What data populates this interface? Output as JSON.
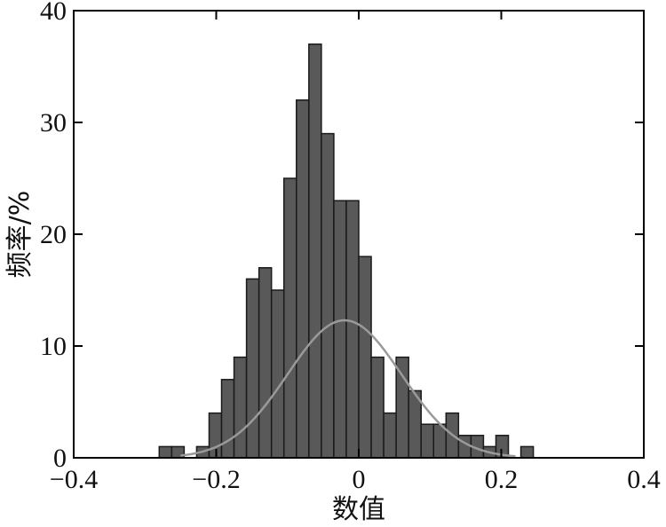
{
  "chart_data": {
    "type": "bar",
    "title": "",
    "xlabel": "数值",
    "ylabel": "频率/%",
    "xlim": [
      -0.4,
      0.4
    ],
    "ylim": [
      0,
      40
    ],
    "x_ticks": [
      -0.4,
      -0.2,
      0,
      0.2,
      0.4
    ],
    "x_tick_labels": [
      "−0.4",
      "−0.2",
      "0",
      "0.2",
      "0.4"
    ],
    "y_ticks": [
      0,
      10,
      20,
      30,
      40
    ],
    "y_tick_labels": [
      "0",
      "10",
      "20",
      "30",
      "40"
    ],
    "grid": false,
    "bin_width": 0.0175,
    "bins": [
      {
        "x0": -0.28,
        "value": 1
      },
      {
        "x0": -0.2625,
        "value": 1
      },
      {
        "x0": -0.2275,
        "value": 1
      },
      {
        "x0": -0.21,
        "value": 4
      },
      {
        "x0": -0.1925,
        "value": 7
      },
      {
        "x0": -0.175,
        "value": 9
      },
      {
        "x0": -0.1575,
        "value": 16
      },
      {
        "x0": -0.14,
        "value": 17
      },
      {
        "x0": -0.1225,
        "value": 15
      },
      {
        "x0": -0.105,
        "value": 25
      },
      {
        "x0": -0.0875,
        "value": 32
      },
      {
        "x0": -0.07,
        "value": 37
      },
      {
        "x0": -0.0525,
        "value": 29
      },
      {
        "x0": -0.035,
        "value": 23
      },
      {
        "x0": -0.0175,
        "value": 23
      },
      {
        "x0": 0.0,
        "value": 18
      },
      {
        "x0": 0.0175,
        "value": 9
      },
      {
        "x0": 0.035,
        "value": 4
      },
      {
        "x0": 0.0525,
        "value": 9
      },
      {
        "x0": 0.07,
        "value": 6
      },
      {
        "x0": 0.0875,
        "value": 3
      },
      {
        "x0": 0.105,
        "value": 3
      },
      {
        "x0": 0.1225,
        "value": 4
      },
      {
        "x0": 0.14,
        "value": 2
      },
      {
        "x0": 0.1575,
        "value": 2
      },
      {
        "x0": 0.175,
        "value": 1
      },
      {
        "x0": 0.1925,
        "value": 2
      },
      {
        "x0": 0.2275,
        "value": 1
      }
    ],
    "curve": {
      "type": "normal-fit",
      "mean": -0.02,
      "sd": 0.08,
      "peak": 12.3
    },
    "colors": {
      "bar_fill": "#595959",
      "bar_stroke": "#1a1a1a",
      "curve": "#9a9a9a",
      "axis": "#000000"
    }
  }
}
